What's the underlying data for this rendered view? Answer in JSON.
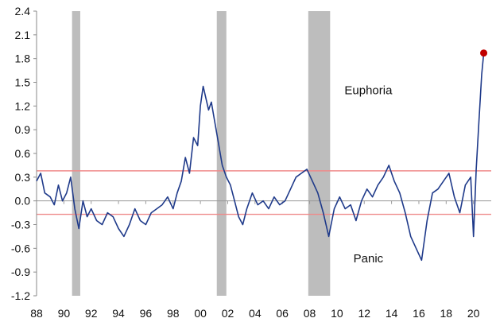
{
  "chart_data": {
    "type": "line",
    "title": "",
    "xlabel": "",
    "ylabel": "",
    "xlim": [
      1988,
      2021.3
    ],
    "ylim": [
      -1.2,
      2.4
    ],
    "x_ticks": [
      1988,
      1990,
      1992,
      1994,
      1996,
      1998,
      2000,
      2002,
      2004,
      2006,
      2008,
      2010,
      2012,
      2014,
      2016,
      2018,
      2020
    ],
    "x_tick_labels": [
      "88",
      "90",
      "92",
      "94",
      "96",
      "98",
      "00",
      "02",
      "04",
      "06",
      "08",
      "10",
      "12",
      "14",
      "16",
      "18",
      "20"
    ],
    "y_ticks": [
      -1.2,
      -0.9,
      -0.6,
      -0.3,
      0.0,
      0.3,
      0.6,
      0.9,
      1.2,
      1.5,
      1.8,
      2.1,
      2.4
    ],
    "y_tick_labels": [
      "-1.2",
      "-0.9",
      "-0.6",
      "-0.3",
      "0.0",
      "0.3",
      "0.6",
      "0.9",
      "1.2",
      "1.5",
      "1.8",
      "2.1",
      "2.4"
    ],
    "grid": false,
    "recession_bands": [
      {
        "start": 1990.6,
        "end": 1991.2
      },
      {
        "start": 2001.2,
        "end": 2001.9
      },
      {
        "start": 2007.9,
        "end": 2009.5
      }
    ],
    "reference_lines": [
      {
        "value": 0.38,
        "color": "#ef8a8a"
      },
      {
        "value": -0.17,
        "color": "#ef8a8a"
      }
    ],
    "annotations": [
      {
        "text": "Euphoria",
        "x": 2012.3,
        "y": 1.35
      },
      {
        "text": "Panic",
        "x": 2012.3,
        "y": -0.78
      }
    ],
    "highlight_point": {
      "x": 2020.75,
      "y": 1.87,
      "color": "#c00000"
    },
    "series": [
      {
        "color": "#1f3a8a",
        "x": [
          1988.0,
          1988.3,
          1988.6,
          1989.0,
          1989.3,
          1989.6,
          1989.9,
          1990.2,
          1990.5,
          1990.8,
          1991.1,
          1991.4,
          1991.7,
          1992.0,
          1992.4,
          1992.8,
          1993.2,
          1993.6,
          1994.0,
          1994.4,
          1994.8,
          1995.2,
          1995.6,
          1996.0,
          1996.4,
          1996.8,
          1997.2,
          1997.6,
          1998.0,
          1998.3,
          1998.6,
          1998.9,
          1999.2,
          1999.5,
          1999.8,
          2000.0,
          2000.2,
          2000.4,
          2000.6,
          2000.8,
          2001.0,
          2001.3,
          2001.6,
          2001.9,
          2002.2,
          2002.5,
          2002.8,
          2003.1,
          2003.4,
          2003.8,
          2004.2,
          2004.6,
          2005.0,
          2005.4,
          2005.8,
          2006.2,
          2006.6,
          2007.0,
          2007.4,
          2007.8,
          2008.2,
          2008.6,
          2009.0,
          2009.4,
          2009.8,
          2010.2,
          2010.6,
          2011.0,
          2011.4,
          2011.8,
          2012.2,
          2012.6,
          2013.0,
          2013.4,
          2013.8,
          2014.2,
          2014.6,
          2015.0,
          2015.4,
          2015.8,
          2016.2,
          2016.6,
          2017.0,
          2017.4,
          2017.8,
          2018.2,
          2018.6,
          2019.0,
          2019.4,
          2019.8,
          2020.0,
          2020.2,
          2020.4,
          2020.6,
          2020.75
        ],
        "y": [
          0.25,
          0.35,
          0.1,
          0.05,
          -0.05,
          0.2,
          0.0,
          0.1,
          0.3,
          -0.1,
          -0.35,
          0.0,
          -0.2,
          -0.1,
          -0.25,
          -0.3,
          -0.15,
          -0.2,
          -0.35,
          -0.45,
          -0.3,
          -0.1,
          -0.25,
          -0.3,
          -0.15,
          -0.1,
          -0.05,
          0.05,
          -0.1,
          0.1,
          0.25,
          0.55,
          0.35,
          0.8,
          0.7,
          1.2,
          1.45,
          1.3,
          1.15,
          1.25,
          1.05,
          0.75,
          0.45,
          0.3,
          0.2,
          0.0,
          -0.2,
          -0.3,
          -0.1,
          0.1,
          -0.05,
          0.0,
          -0.1,
          0.05,
          -0.05,
          0.0,
          0.15,
          0.3,
          0.35,
          0.4,
          0.25,
          0.1,
          -0.15,
          -0.45,
          -0.1,
          0.05,
          -0.1,
          -0.05,
          -0.25,
          0.0,
          0.15,
          0.05,
          0.2,
          0.3,
          0.45,
          0.25,
          0.1,
          -0.15,
          -0.45,
          -0.6,
          -0.75,
          -0.25,
          0.1,
          0.15,
          0.25,
          0.35,
          0.05,
          -0.15,
          0.2,
          0.3,
          -0.45,
          0.4,
          1.0,
          1.6,
          1.87
        ]
      }
    ]
  }
}
